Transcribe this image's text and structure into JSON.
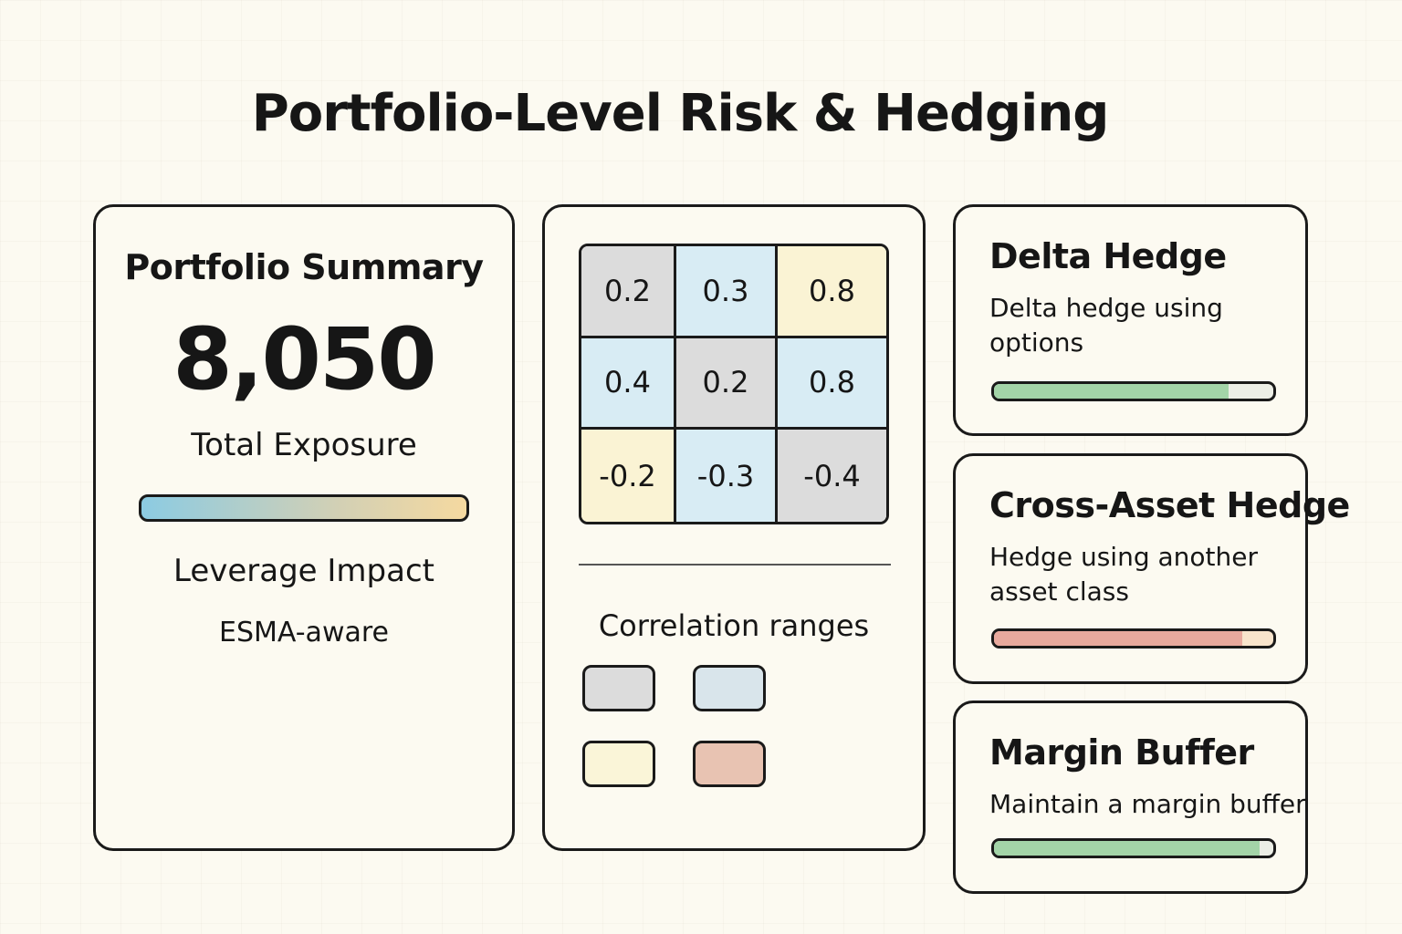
{
  "title": "Portfolio-Level Risk & Hedging",
  "summary": {
    "heading": "Portfolio Summary",
    "value": "8,050",
    "value_label": "Total Exposure",
    "gradient_colors": [
      "#8ccbe2",
      "#d2d0b5",
      "#f5d9a0"
    ],
    "bar_label": "Leverage Impact",
    "note": "ESMA-aware"
  },
  "matrix": {
    "cells": [
      {
        "value": "0.2",
        "color": "#dcdcdc"
      },
      {
        "value": "0.3",
        "color": "#d8ecf4"
      },
      {
        "value": "0.8",
        "color": "#faf3d4"
      },
      {
        "value": "0.4",
        "color": "#d8ecf4"
      },
      {
        "value": "0.2",
        "color": "#dcdcdc"
      },
      {
        "value": "0.8",
        "color": "#d8ecf4"
      },
      {
        "value": "-0.2",
        "color": "#faf3d4"
      },
      {
        "value": "-0.3",
        "color": "#d8ecf4"
      },
      {
        "value": "-0.4",
        "color": "#dcdcdc"
      }
    ],
    "legend_title": "Correlation ranges",
    "legend_swatches": [
      "#dcdcdc",
      "#d9e5eb",
      "#faf5d8",
      "#e8c3b2"
    ]
  },
  "hedges": [
    {
      "title": "Delta Hedge",
      "description": "Delta hedge using options",
      "progress": 84,
      "fill_color": "#a3d4a8",
      "track_color": "#eceee6"
    },
    {
      "title": "Cross-Asset Hedge",
      "description": "Hedge using another asset class",
      "progress": 89,
      "fill_color": "#e8a99e",
      "track_color": "#f8e4cc"
    },
    {
      "title": "Margin Buffer",
      "description": "Maintain a margin buffer",
      "progress": 95,
      "fill_color": "#a3d4a8",
      "track_color": "#eceee6"
    }
  ]
}
